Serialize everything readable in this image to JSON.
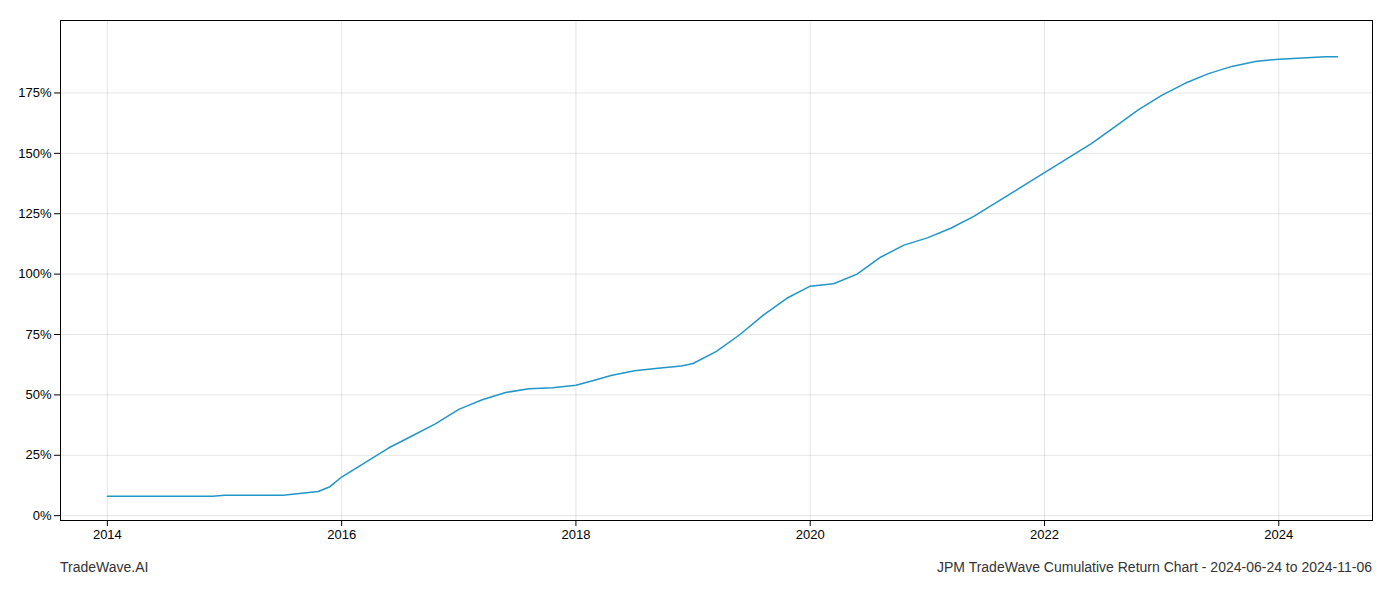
{
  "chart_data": {
    "type": "line",
    "title": "JPM TradeWave Cumulative Return Chart - 2024-06-24 to 2024-11-06",
    "annotations": [
      "TradeWave.AI"
    ],
    "color": "#2196c8",
    "grid": true,
    "x": [
      2014.0,
      2014.1,
      2014.2,
      2014.3,
      2014.4,
      2014.5,
      2014.6,
      2014.7,
      2014.8,
      2014.9,
      2015.0,
      2015.1,
      2015.2,
      2015.3,
      2015.4,
      2015.5,
      2015.6,
      2015.7,
      2015.8,
      2015.9,
      2016.0,
      2016.2,
      2016.4,
      2016.6,
      2016.8,
      2017.0,
      2017.2,
      2017.4,
      2017.6,
      2017.8,
      2018.0,
      2018.15,
      2018.3,
      2018.5,
      2018.7,
      2018.9,
      2019.0,
      2019.2,
      2019.4,
      2019.6,
      2019.8,
      2020.0,
      2020.2,
      2020.4,
      2020.6,
      2020.8,
      2021.0,
      2021.2,
      2021.4,
      2021.6,
      2021.8,
      2022.0,
      2022.2,
      2022.4,
      2022.6,
      2022.8,
      2023.0,
      2023.2,
      2023.4,
      2023.6,
      2023.8,
      2024.0,
      2024.2,
      2024.4,
      2024.5
    ],
    "values": [
      8.0,
      8.0,
      8.0,
      8.0,
      8.0,
      8.0,
      8.0,
      8.0,
      8.0,
      8.0,
      8.5,
      8.5,
      8.5,
      8.5,
      8.5,
      8.5,
      9.0,
      9.5,
      10.0,
      12.0,
      16.0,
      22.0,
      28.0,
      33.0,
      38.0,
      44.0,
      48.0,
      51.0,
      52.5,
      53.0,
      54.0,
      56.0,
      58.0,
      60.0,
      61.0,
      62.0,
      63.0,
      68.0,
      75.0,
      83.0,
      90.0,
      95.0,
      96.0,
      100.0,
      107.0,
      112.0,
      115.0,
      119.0,
      124.0,
      130.0,
      136.0,
      142.0,
      148.0,
      154.0,
      161.0,
      168.0,
      174.0,
      179.0,
      183.0,
      186.0,
      188.0,
      189.0,
      189.5,
      190.0,
      190.0
    ],
    "xlim": [
      2013.6,
      2024.8
    ],
    "ylim": [
      -2,
      205
    ],
    "xticks": [
      2014,
      2016,
      2018,
      2020,
      2022,
      2024
    ],
    "yticks": [
      {
        "value": 0,
        "label": "0%"
      },
      {
        "value": 25,
        "label": "25%"
      },
      {
        "value": 50,
        "label": "50%"
      },
      {
        "value": 75,
        "label": "75%"
      },
      {
        "value": 100,
        "label": "100%"
      },
      {
        "value": 125,
        "label": "125%"
      },
      {
        "value": 150,
        "label": "150%"
      },
      {
        "value": 175,
        "label": "175%"
      }
    ]
  }
}
